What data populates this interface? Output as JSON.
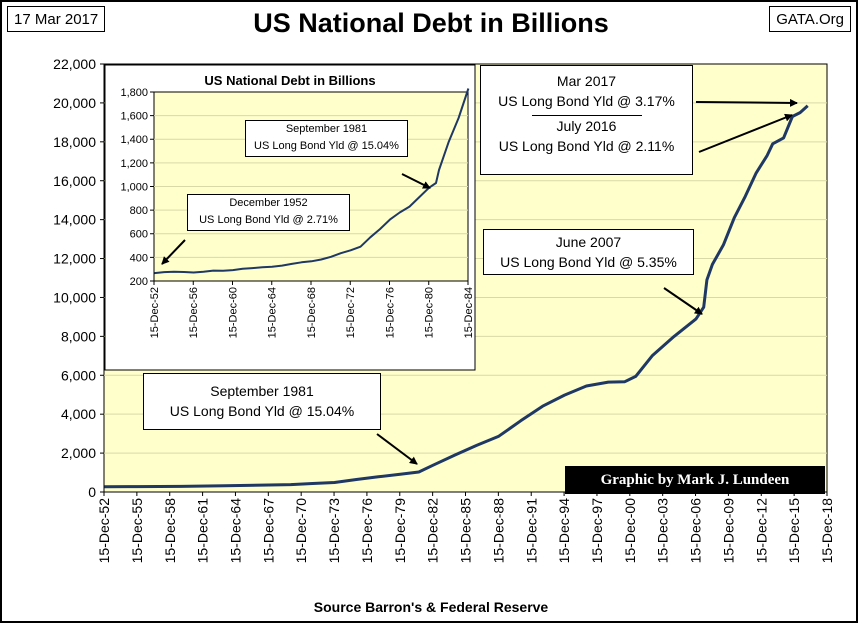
{
  "header": {
    "date": "17 Mar 2017",
    "title": "US National Debt in Billions",
    "brand": "GATA.Org"
  },
  "source": "Source Barron's & Federal Reserve",
  "credit": "Graphic by Mark J. Lundeen",
  "colors": {
    "plot_bg": "#ffffcc",
    "line": "#1f3864",
    "grid": "#d9d9a8"
  },
  "annotations": {
    "mar2017_date": "Mar 2017",
    "mar2017_yield": "US Long Bond Yld @ 3.17%",
    "jul2016_date": "July 2016",
    "jul2016_yield": "US Long Bond Yld @ 2.11%",
    "jun2007_date": "June 2007",
    "jun2007_yield": "US Long Bond Yld @ 5.35%",
    "sep1981_date": "September 1981",
    "sep1981_yield": "US Long Bond Yld @ 15.04%"
  },
  "inset_annotations": {
    "sep1981_date": "September 1981",
    "sep1981_yield": "US Long Bond Yld @ 15.04%",
    "dec1952_date": "December 1952",
    "dec1952_yield": "US Long Bond Yld @ 2.71%"
  },
  "chart_data": [
    {
      "type": "line",
      "title": "US National Debt in Billions",
      "xlabel": "",
      "ylabel": "",
      "ylim": [
        0,
        22000
      ],
      "xlim": [
        1952.96,
        2018.96
      ],
      "yticks": [
        "0",
        "2,000",
        "4,000",
        "6,000",
        "8,000",
        "10,000",
        "12,000",
        "14,000",
        "16,000",
        "18,000",
        "20,000",
        "22,000"
      ],
      "xticks": [
        "15-Dec-52",
        "15-Dec-55",
        "15-Dec-58",
        "15-Dec-61",
        "15-Dec-64",
        "15-Dec-67",
        "15-Dec-70",
        "15-Dec-73",
        "15-Dec-76",
        "15-Dec-79",
        "15-Dec-82",
        "15-Dec-85",
        "15-Dec-88",
        "15-Dec-91",
        "15-Dec-94",
        "15-Dec-97",
        "15-Dec-00",
        "15-Dec-03",
        "15-Dec-06",
        "15-Dec-09",
        "15-Dec-12",
        "15-Dec-15",
        "15-Dec-18"
      ],
      "grid": true,
      "series": [
        {
          "name": "US National Debt",
          "x": [
            1953.0,
            1956,
            1960,
            1964,
            1968,
            1970,
            1972,
            1974,
            1976,
            1978,
            1980,
            1981.7,
            1983,
            1985,
            1987,
            1989,
            1991,
            1993,
            1995,
            1997,
            1999,
            2000.5,
            2001.5,
            2003,
            2005,
            2007.0,
            2007.7,
            2008.0,
            2008.5,
            2009.5,
            2010.5,
            2011.5,
            2012.5,
            2013.5,
            2014.0,
            2015.0,
            2015.8,
            2016.5,
            2017.2
          ],
          "values": [
            267,
            276,
            286,
            317,
            358,
            382,
            435,
            490,
            640,
            780,
            910,
            1030,
            1380,
            1900,
            2400,
            2870,
            3660,
            4410,
            4980,
            5450,
            5650,
            5670,
            5940,
            7000,
            8000,
            8900,
            9500,
            10900,
            11700,
            12700,
            14100,
            15200,
            16400,
            17300,
            17900,
            18200,
            19300,
            19500,
            19850
          ]
        }
      ]
    },
    {
      "type": "line",
      "title": "US National Debt in Billions",
      "xlabel": "",
      "ylabel": "",
      "ylim": [
        200,
        1800
      ],
      "xlim": [
        1952.96,
        1984.96
      ],
      "yticks": [
        "200",
        "400",
        "600",
        "800",
        "1,000",
        "1,200",
        "1,400",
        "1,600",
        "1,800"
      ],
      "xticks": [
        "15-Dec-52",
        "15-Dec-56",
        "15-Dec-60",
        "15-Dec-64",
        "15-Dec-68",
        "15-Dec-72",
        "15-Dec-76",
        "15-Dec-80",
        "15-Dec-84"
      ],
      "grid": true,
      "series": [
        {
          "name": "US National Debt 1952-1985",
          "x": [
            1953.0,
            1954,
            1955,
            1956,
            1957,
            1958,
            1959,
            1960,
            1961,
            1962,
            1963,
            1964,
            1965,
            1966,
            1967,
            1968,
            1969,
            1970,
            1971,
            1972,
            1973,
            1974,
            1975,
            1976,
            1977,
            1978,
            1979,
            1980,
            1981,
            1981.7,
            1982,
            1983,
            1984,
            1985.0
          ],
          "values": [
            267,
            275,
            278,
            276,
            272,
            279,
            288,
            286,
            292,
            303,
            309,
            317,
            320,
            330,
            345,
            358,
            367,
            382,
            405,
            435,
            460,
            490,
            570,
            640,
            720,
            780,
            830,
            910,
            990,
            1030,
            1140,
            1380,
            1580,
            1830
          ]
        }
      ]
    }
  ]
}
